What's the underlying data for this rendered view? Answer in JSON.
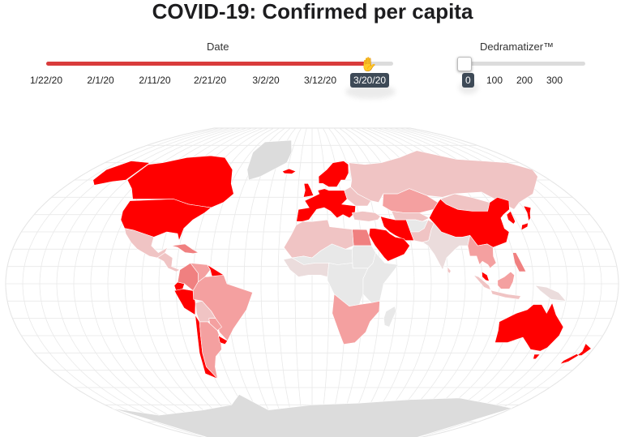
{
  "title": "COVID-19: Confirmed per capita",
  "date_slider": {
    "label": "Date",
    "ticks": [
      "1/22/20",
      "2/1/20",
      "2/11/20",
      "2/21/20",
      "3/2/20",
      "3/12/20"
    ],
    "value": "3/20/20",
    "position_fraction": 0.92,
    "fill_color": "#d93b3b"
  },
  "dedramatizer": {
    "label": "Dedramatizer™",
    "ticks": [
      "100",
      "200",
      "300"
    ],
    "value": "0",
    "position_fraction": 0.0
  },
  "map": {
    "projection": "robinson-like",
    "graticule": true,
    "colors": {
      "highest": "#ff0000",
      "high": "#f08080",
      "medium": "#f4a0a0",
      "low": "#f0c4c4",
      "very_low": "#ebdcdc",
      "no_cases": "#e8e8e8",
      "no_data": "#dcdcdc",
      "graticule": "#e9e9e9"
    },
    "regions": [
      {
        "name": "Canada",
        "level": "highest"
      },
      {
        "name": "United States",
        "level": "highest"
      },
      {
        "name": "Alaska",
        "level": "highest"
      },
      {
        "name": "Greenland",
        "level": "no_data"
      },
      {
        "name": "Iceland",
        "level": "highest"
      },
      {
        "name": "Mexico",
        "level": "low"
      },
      {
        "name": "Central America",
        "level": "low"
      },
      {
        "name": "Caribbean",
        "level": "high"
      },
      {
        "name": "Colombia",
        "level": "high"
      },
      {
        "name": "Venezuela",
        "level": "medium"
      },
      {
        "name": "Guiana",
        "level": "highest"
      },
      {
        "name": "Ecuador",
        "level": "highest"
      },
      {
        "name": "Peru",
        "level": "highest"
      },
      {
        "name": "Brazil",
        "level": "medium"
      },
      {
        "name": "Bolivia",
        "level": "low"
      },
      {
        "name": "Paraguay",
        "level": "medium"
      },
      {
        "name": "Chile",
        "level": "highest"
      },
      {
        "name": "Argentina",
        "level": "medium"
      },
      {
        "name": "Uruguay",
        "level": "highest"
      },
      {
        "name": "Scandinavia",
        "level": "highest"
      },
      {
        "name": "Western Europe",
        "level": "highest"
      },
      {
        "name": "Eastern Europe",
        "level": "low"
      },
      {
        "name": "Russia",
        "level": "low"
      },
      {
        "name": "Kazakhstan",
        "level": "medium"
      },
      {
        "name": "Turkey",
        "level": "low"
      },
      {
        "name": "Iran",
        "level": "highest"
      },
      {
        "name": "Arabian Peninsula",
        "level": "highest"
      },
      {
        "name": "Egypt",
        "level": "high"
      },
      {
        "name": "North Africa",
        "level": "low"
      },
      {
        "name": "Sahel",
        "level": "no_cases"
      },
      {
        "name": "West Africa",
        "level": "very_low"
      },
      {
        "name": "Central Africa",
        "level": "no_cases"
      },
      {
        "name": "East Africa",
        "level": "no_cases"
      },
      {
        "name": "Southern Africa",
        "level": "medium"
      },
      {
        "name": "Madagascar",
        "level": "no_cases"
      },
      {
        "name": "Central Asia",
        "level": "low"
      },
      {
        "name": "Afghanistan",
        "level": "no_cases"
      },
      {
        "name": "Pakistan",
        "level": "low"
      },
      {
        "name": "India",
        "level": "very_low"
      },
      {
        "name": "Sri Lanka",
        "level": "low"
      },
      {
        "name": "Mongolia",
        "level": "low"
      },
      {
        "name": "China",
        "level": "highest"
      },
      {
        "name": "Korea",
        "level": "highest"
      },
      {
        "name": "Japan",
        "level": "highest"
      },
      {
        "name": "Southeast Asia",
        "level": "medium"
      },
      {
        "name": "Malaysia",
        "level": "highest"
      },
      {
        "name": "Indonesia",
        "level": "low"
      },
      {
        "name": "Philippines",
        "level": "high"
      },
      {
        "name": "Papua New Guinea",
        "level": "very_low"
      },
      {
        "name": "Australia",
        "level": "highest"
      },
      {
        "name": "New Zealand",
        "level": "highest"
      },
      {
        "name": "Antarctica",
        "level": "no_data"
      }
    ]
  }
}
